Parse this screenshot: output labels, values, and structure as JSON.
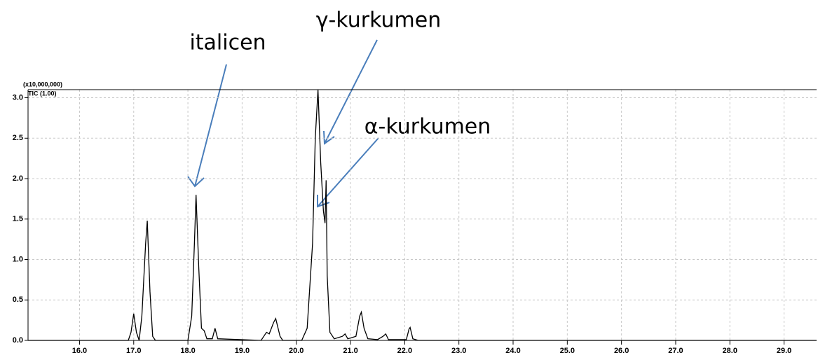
{
  "chart_data": {
    "type": "line",
    "y_multiplier": "(x10,000,000)",
    "trace_label": "TIC (1.00)",
    "annotations": [
      "italicen",
      "γ-kurkumen",
      "α-kurkumen"
    ],
    "xlim": [
      15.05,
      29.6
    ],
    "ylim": [
      0,
      3.1
    ],
    "xticks": [
      {
        "value": 16,
        "label": "16.0"
      },
      {
        "value": 17,
        "label": "17.0"
      },
      {
        "value": 18,
        "label": "18.0"
      },
      {
        "value": 19,
        "label": "19.0"
      },
      {
        "value": 20,
        "label": "20.0"
      },
      {
        "value": 21,
        "label": "21.0"
      },
      {
        "value": 22,
        "label": "22.0"
      },
      {
        "value": 23,
        "label": "23.0"
      },
      {
        "value": 24,
        "label": "24.0"
      },
      {
        "value": 25,
        "label": "25.0"
      },
      {
        "value": 26,
        "label": "26.0"
      },
      {
        "value": 27,
        "label": "27.0"
      },
      {
        "value": 28,
        "label": "28.0"
      },
      {
        "value": 29,
        "label": "29.0"
      }
    ],
    "yticks": [
      {
        "value": 0,
        "label": "0.0"
      },
      0.5,
      {
        "value": 1,
        "label": "1.0"
      },
      1.5,
      {
        "value": 2,
        "label": "2.0"
      },
      2.5,
      {
        "value": 3,
        "label": "3.0"
      }
    ],
    "grid": true,
    "x": [
      15.05,
      16.9,
      16.95,
      17.0,
      17.05,
      17.1,
      17.15,
      17.22,
      17.25,
      17.3,
      17.35,
      17.4,
      18.0,
      18.07,
      18.12,
      18.15,
      18.2,
      18.25,
      18.3,
      18.35,
      18.45,
      18.5,
      18.55,
      19.35,
      19.45,
      19.5,
      19.58,
      19.62,
      19.7,
      19.75,
      20.1,
      20.2,
      20.3,
      20.35,
      20.4,
      20.45,
      20.5,
      20.53,
      20.55,
      20.57,
      20.62,
      20.7,
      20.85,
      20.9,
      20.95,
      21.1,
      21.17,
      21.2,
      21.25,
      21.32,
      21.5,
      21.6,
      21.65,
      21.7,
      22.03,
      22.08,
      22.1,
      22.15,
      22.25,
      29.6
    ],
    "series": [
      {
        "name": "TIC",
        "color": "#000000",
        "values": [
          0,
          0,
          0.1,
          0.33,
          0.1,
          0,
          0.3,
          1.2,
          1.48,
          0.6,
          0.05,
          0,
          0,
          0.3,
          1.2,
          1.8,
          0.9,
          0.15,
          0.12,
          0.02,
          0.02,
          0.15,
          0.02,
          0,
          0.1,
          0.08,
          0.22,
          0.27,
          0.05,
          0,
          0,
          0.15,
          1.2,
          2.5,
          3.1,
          2.2,
          1.6,
          1.45,
          1.98,
          0.8,
          0.1,
          0.02,
          0.05,
          0.08,
          0.02,
          0.05,
          0.3,
          0.35,
          0.15,
          0.02,
          0.01,
          0.05,
          0.08,
          0.01,
          0.01,
          0.14,
          0.16,
          0.02,
          0,
          0
        ]
      }
    ]
  }
}
